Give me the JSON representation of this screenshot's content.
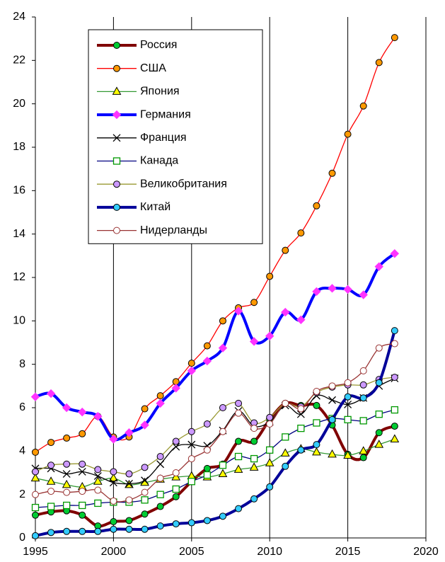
{
  "chart_data": {
    "type": "line",
    "x": [
      1995,
      1996,
      1997,
      1998,
      1999,
      2000,
      2001,
      2002,
      2003,
      2004,
      2005,
      2006,
      2007,
      2008,
      2009,
      2010,
      2011,
      2012,
      2013,
      2014,
      2015,
      2016,
      2017,
      2018
    ],
    "xlim": [
      1995,
      2020
    ],
    "xticks": [
      1995,
      2000,
      2005,
      2010,
      2015,
      2020
    ],
    "ylim": [
      0,
      24
    ],
    "yticks": [
      0,
      2,
      4,
      6,
      8,
      10,
      12,
      14,
      16,
      18,
      20,
      22,
      24
    ],
    "grid": "x",
    "legend": "upper left",
    "series": [
      {
        "name": "Россия",
        "color": "#800000",
        "marker": "circle",
        "marker_color": "#00cc33",
        "bold": true,
        "values": [
          1.05,
          1.2,
          1.25,
          1.05,
          0.55,
          0.75,
          0.8,
          1.1,
          1.45,
          1.9,
          2.6,
          3.2,
          3.4,
          4.45,
          4.45,
          5.45,
          6.2,
          6.1,
          6.1,
          5.2,
          3.85,
          3.7,
          4.85,
          5.15
        ]
      },
      {
        "name": "США",
        "color": "#ff0000",
        "marker": "circle",
        "marker_color": "#ff9900",
        "bold": false,
        "values": [
          3.95,
          4.4,
          4.6,
          4.8,
          5.6,
          4.65,
          4.65,
          5.95,
          6.55,
          7.2,
          8.05,
          8.85,
          10.0,
          10.6,
          10.85,
          12.05,
          13.25,
          14.05,
          15.3,
          16.8,
          18.6,
          19.9,
          21.9,
          23.05
        ]
      },
      {
        "name": "Япония",
        "color": "#339933",
        "marker": "triangle",
        "marker_color": "#ffff00",
        "bold": false,
        "values": [
          2.75,
          2.6,
          2.45,
          2.35,
          2.6,
          2.75,
          2.45,
          2.55,
          2.7,
          2.8,
          2.85,
          2.8,
          2.95,
          3.15,
          3.25,
          3.45,
          3.9,
          4.1,
          3.95,
          3.85,
          3.8,
          4.0,
          4.3,
          4.55
        ]
      },
      {
        "name": "Германия",
        "color": "#0000ff",
        "marker": "diamond",
        "marker_color": "#ff33ff",
        "bold": true,
        "values": [
          6.5,
          6.65,
          6.0,
          5.8,
          5.6,
          4.55,
          4.85,
          5.2,
          6.2,
          6.9,
          7.7,
          8.15,
          8.75,
          10.45,
          9.05,
          9.3,
          10.4,
          10.05,
          11.35,
          11.5,
          11.45,
          11.2,
          12.5,
          13.1
        ]
      },
      {
        "name": "Франция",
        "color": "#000000",
        "marker": "x",
        "marker_color": "#000000",
        "bold": false,
        "values": [
          3.2,
          3.2,
          2.95,
          3.05,
          2.85,
          2.55,
          2.5,
          2.65,
          3.4,
          4.2,
          4.3,
          4.25,
          4.95,
          5.85,
          5.15,
          5.35,
          6.1,
          5.7,
          6.55,
          6.35,
          6.15,
          6.45,
          7.0,
          7.35
        ]
      },
      {
        "name": "Канада",
        "color": "#000080",
        "marker": "square",
        "marker_color": "#009900",
        "bold": false,
        "values": [
          1.4,
          1.45,
          1.5,
          1.5,
          1.6,
          1.65,
          1.65,
          1.75,
          2.0,
          2.25,
          2.6,
          2.9,
          3.35,
          3.75,
          3.65,
          4.05,
          4.65,
          5.05,
          5.3,
          5.5,
          5.45,
          5.4,
          5.7,
          5.9
        ]
      },
      {
        "name": "Великобритания",
        "color": "#999933",
        "marker": "circle",
        "marker_color": "#cc99ff",
        "bold": false,
        "values": [
          3.05,
          3.35,
          3.4,
          3.4,
          3.15,
          3.05,
          2.95,
          3.25,
          3.75,
          4.45,
          4.9,
          5.25,
          6.0,
          6.2,
          5.3,
          5.55,
          6.2,
          6.05,
          6.7,
          6.95,
          7.05,
          7.05,
          7.3,
          7.4
        ]
      },
      {
        "name": "Китай",
        "color": "#000099",
        "marker": "circle",
        "marker_color": "#33ccff",
        "bold": true,
        "values": [
          0.1,
          0.25,
          0.3,
          0.3,
          0.3,
          0.4,
          0.4,
          0.4,
          0.55,
          0.65,
          0.7,
          0.8,
          1.0,
          1.35,
          1.8,
          2.35,
          3.3,
          4.05,
          4.3,
          5.45,
          6.5,
          6.45,
          7.15,
          9.55
        ]
      },
      {
        "name": "Нидерланды",
        "color": "#993333",
        "marker": "circle",
        "marker_color": "#ffffff",
        "bold": false,
        "values": [
          2.0,
          2.15,
          2.1,
          2.15,
          2.2,
          1.7,
          1.75,
          2.1,
          2.75,
          3.0,
          3.65,
          4.05,
          4.9,
          5.75,
          5.05,
          5.25,
          6.2,
          5.95,
          6.75,
          7.0,
          7.15,
          7.7,
          8.75,
          8.95
        ]
      }
    ]
  }
}
